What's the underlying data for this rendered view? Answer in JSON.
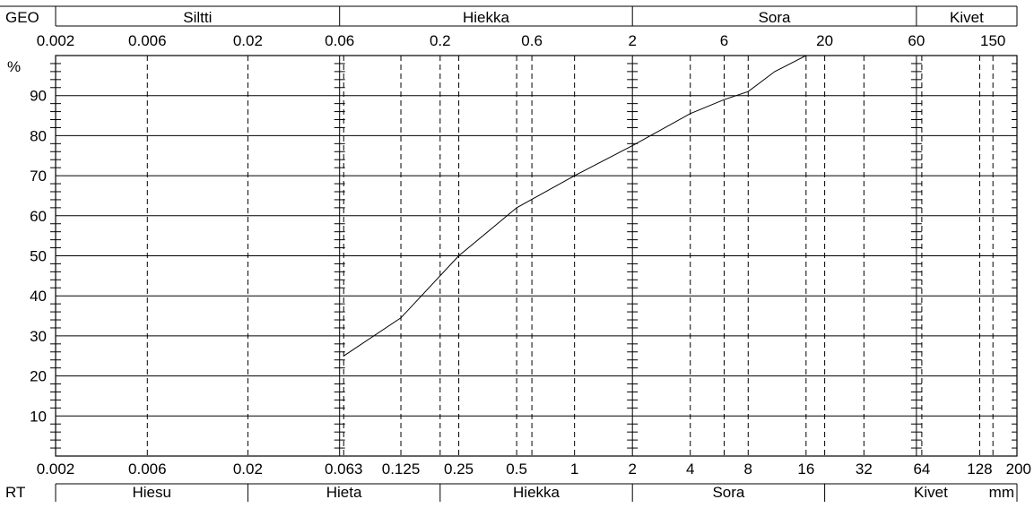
{
  "chart_data": {
    "type": "line",
    "title": "",
    "xlabel": "mm",
    "ylabel": "%",
    "x_scale": "log",
    "xlim": [
      0.002,
      200
    ],
    "ylim": [
      0,
      100
    ],
    "grid": true,
    "top_axis": {
      "label": "GEO",
      "ticks": [
        "0.002",
        "0.006",
        "0.02",
        "0.06",
        "0.2",
        "0.6",
        "2",
        "6",
        "20",
        "60",
        "150"
      ],
      "tick_values": [
        0.002,
        0.006,
        0.02,
        0.06,
        0.2,
        0.6,
        2,
        6,
        20,
        60,
        150
      ],
      "classes": [
        {
          "name": "Siltti",
          "from": 0.002,
          "to": 0.06
        },
        {
          "name": "Hiekka",
          "from": 0.06,
          "to": 2
        },
        {
          "name": "Sora",
          "from": 2,
          "to": 60
        },
        {
          "name": "Kivet",
          "from": 60,
          "to": 200
        }
      ]
    },
    "bottom_axis": {
      "label": "RT",
      "ticks": [
        "0.002",
        "0.006",
        "0.02",
        "0.063",
        "0.125",
        "0.25",
        "0.5",
        "1",
        "2",
        "4",
        "8",
        "16",
        "32",
        "64",
        "128",
        "200"
      ],
      "tick_values": [
        0.002,
        0.006,
        0.02,
        0.063,
        0.125,
        0.25,
        0.5,
        1,
        2,
        4,
        8,
        16,
        32,
        64,
        128,
        200
      ],
      "classes": [
        {
          "name": "Hiesu",
          "from": 0.002,
          "to": 0.02
        },
        {
          "name": "Hieta",
          "from": 0.02,
          "to": 0.2
        },
        {
          "name": "Hiekka",
          "from": 0.2,
          "to": 2
        },
        {
          "name": "Sora",
          "from": 2,
          "to": 20
        },
        {
          "name": "Kivet",
          "from": 20,
          "to": 200
        }
      ]
    },
    "y_ticks": [
      10,
      20,
      30,
      40,
      50,
      60,
      70,
      80,
      90
    ],
    "dashed_lines": [
      0.006,
      0.02,
      0.063,
      0.125,
      0.2,
      0.25,
      0.5,
      0.6,
      1,
      4,
      6,
      8,
      16,
      20,
      32,
      64,
      128,
      150
    ],
    "solid_lines": [
      0.06,
      2,
      60
    ],
    "series": [
      {
        "x": [
          0.063,
          0.125,
          0.25,
          0.5,
          1,
          2,
          4,
          6,
          8,
          11,
          16
        ],
        "y": [
          25,
          34.5,
          50,
          62,
          70,
          77.5,
          85.5,
          89,
          91,
          96,
          100
        ]
      }
    ]
  }
}
